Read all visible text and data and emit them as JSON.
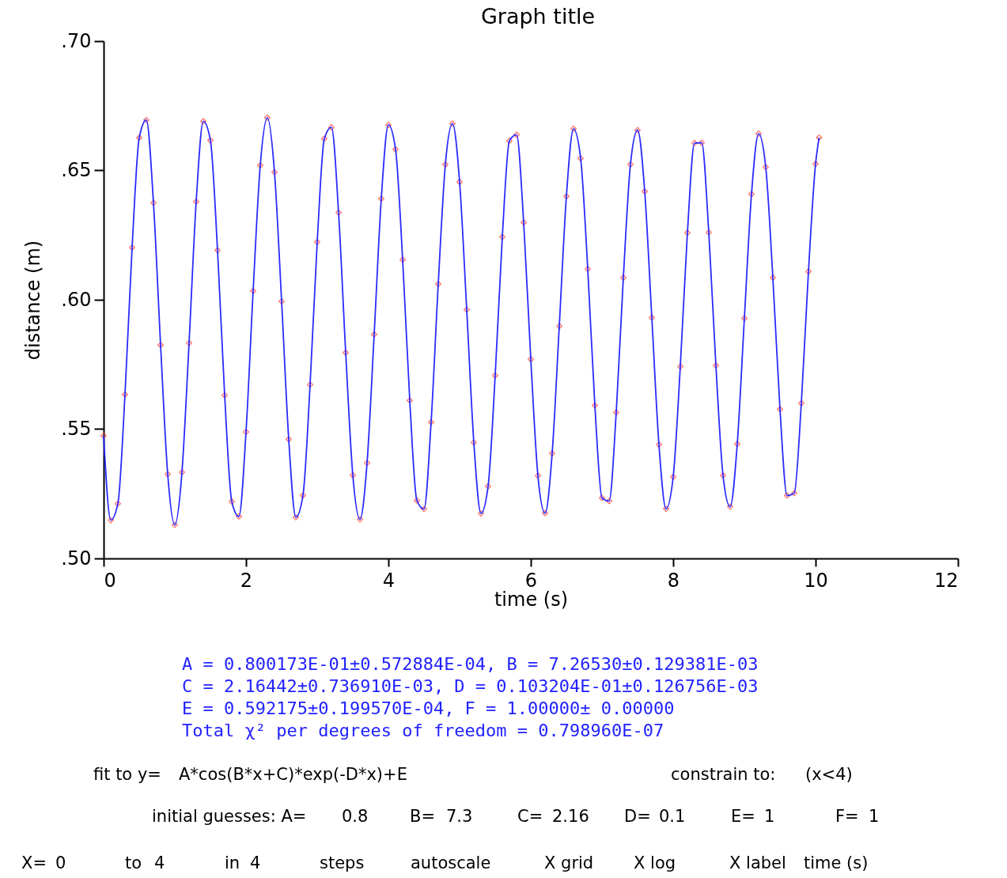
{
  "chart_data": {
    "type": "scatter",
    "title": "Graph title",
    "xlabel": "time (s)",
    "ylabel": "distance (m)",
    "x": [
      0,
      0.1,
      0.2,
      0.3,
      0.4,
      0.5,
      0.6,
      0.7,
      0.8,
      0.9,
      1,
      1.1,
      1.2,
      1.3,
      1.4,
      1.5,
      1.6,
      1.7,
      1.8,
      1.9,
      2,
      2.1,
      2.2,
      2.3,
      2.4,
      2.5,
      2.6,
      2.7,
      2.8,
      2.9,
      3,
      3.1,
      3.2,
      3.3,
      3.4,
      3.5,
      3.6,
      3.7,
      3.8,
      3.9,
      4,
      4.1,
      4.2,
      4.3,
      4.4,
      4.5,
      4.6,
      4.7,
      4.8,
      4.9,
      5,
      5.1,
      5.2,
      5.3,
      5.4,
      5.5,
      5.6,
      5.7,
      5.8,
      5.9,
      6,
      6.1,
      6.2,
      6.3,
      6.4,
      6.5,
      6.6,
      6.7,
      6.8,
      6.9,
      7,
      7.1,
      7.2,
      7.3,
      7.4,
      7.5,
      7.6,
      7.7,
      7.8,
      7.9,
      8,
      8.1,
      8.2,
      8.3,
      8.4,
      8.5,
      8.6,
      8.7,
      8.8,
      8.9,
      9,
      9.1,
      9.2,
      9.3,
      9.4,
      9.5,
      9.6,
      9.7,
      9.8,
      9.9,
      10,
      10.05
    ],
    "series": [
      {
        "marker": "diamond",
        "color": "#ff3b2f",
        "values": [
          0.5474,
          0.5148,
          0.5212,
          0.5634,
          0.6202,
          0.6626,
          0.6695,
          0.6375,
          0.5825,
          0.5326,
          0.513,
          0.5333,
          0.5833,
          0.6379,
          0.669,
          0.6616,
          0.6191,
          0.5631,
          0.522,
          0.5162,
          0.5489,
          0.6034,
          0.652,
          0.6704,
          0.6493,
          0.5994,
          0.546,
          0.5159,
          0.5244,
          0.5672,
          0.6223,
          0.6623,
          0.6667,
          0.6337,
          0.5796,
          0.5322,
          0.5151,
          0.5369,
          0.5866,
          0.6391,
          0.6676,
          0.6582,
          0.6155,
          0.5611,
          0.5224,
          0.5191,
          0.5527,
          0.6061,
          0.6523,
          0.6681,
          0.6456,
          0.5962,
          0.5448,
          0.5174,
          0.5279,
          0.5707,
          0.6243,
          0.6615,
          0.6638,
          0.6299,
          0.577,
          0.532,
          0.5175,
          0.5406,
          0.5898,
          0.64,
          0.6661,
          0.6547,
          0.6119,
          0.5592,
          0.5234,
          0.5222,
          0.5564,
          0.6086,
          0.6524,
          0.6656,
          0.6419,
          0.5931,
          0.544,
          0.5192,
          0.5315,
          0.5742,
          0.6259,
          0.6606,
          0.6607,
          0.6261,
          0.5746,
          0.5321,
          0.52,
          0.5443,
          0.5928,
          0.6408,
          0.6642,
          0.6513,
          0.6086,
          0.5577,
          0.5243,
          0.5252,
          0.56,
          0.6109,
          0.6525,
          0.6627
        ]
      },
      {
        "type": "line",
        "line_style": "solid",
        "color": "#2b2bff",
        "values": [
          0.5474,
          0.5148,
          0.5212,
          0.5634,
          0.6202,
          0.6626,
          0.6695,
          0.6375,
          0.5825,
          0.5326,
          0.513,
          0.5333,
          0.5833,
          0.6379,
          0.669,
          0.6616,
          0.6191,
          0.5631,
          0.522,
          0.5162,
          0.5489,
          0.6034,
          0.652,
          0.6704,
          0.6493,
          0.5994,
          0.546,
          0.5159,
          0.5244,
          0.5672,
          0.6223,
          0.6623,
          0.6667,
          0.6337,
          0.5796,
          0.5322,
          0.5151,
          0.5369,
          0.5866,
          0.6391,
          0.6676,
          0.6582,
          0.6155,
          0.5611,
          0.5224,
          0.5191,
          0.5527,
          0.6061,
          0.6523,
          0.6681,
          0.6456,
          0.5962,
          0.5448,
          0.5174,
          0.5279,
          0.5707,
          0.6243,
          0.6615,
          0.6638,
          0.6299,
          0.577,
          0.532,
          0.5175,
          0.5406,
          0.5898,
          0.64,
          0.6661,
          0.6547,
          0.6119,
          0.5592,
          0.5234,
          0.5222,
          0.5564,
          0.6086,
          0.6524,
          0.6656,
          0.6419,
          0.5931,
          0.544,
          0.5192,
          0.5315,
          0.5742,
          0.6259,
          0.6606,
          0.6607,
          0.6261,
          0.5746,
          0.5321,
          0.52,
          0.5443,
          0.5928,
          0.6408,
          0.6642,
          0.6513,
          0.6086,
          0.5577,
          0.5243,
          0.5252,
          0.56,
          0.6109,
          0.6525,
          0.6627
        ]
      }
    ],
    "xlim": [
      0,
      12
    ],
    "xticks": [
      0,
      2,
      4,
      6,
      8,
      10,
      12
    ],
    "ylim": [
      0.5,
      0.7
    ],
    "yticks": [
      {
        "value": 0.5,
        "label": ".50"
      },
      {
        "value": 0.55,
        "label": ".55"
      },
      {
        "value": 0.6,
        "label": ".60"
      },
      {
        "value": 0.65,
        "label": ".65"
      },
      {
        "value": 0.7,
        "label": ".70"
      }
    ],
    "grid": false,
    "legend": false,
    "annotations": [
      "A =   0.800173E-01±0.572884E-04, B =    7.26530±0.129381E-03",
      "C =    2.16442±0.736910E-03, D =  0.103204E-01±0.126756E-03",
      "E =   0.592175±0.199570E-04, F =    1.00000± 0.00000",
      "Total χ² per degrees of freedom =  0.798960E-07",
      "fit to y=",
      "A*cos(B*x+C)*exp(-D*x)+E",
      "constrain to:",
      "(x<4)",
      "initial guesses: A=",
      "0.8",
      "B=",
      "7.3",
      "C=",
      "2.16",
      "D=",
      "0.1",
      "E=",
      "1",
      "F=",
      "1",
      "X=",
      "0",
      "to",
      "4",
      "in",
      "4",
      "steps",
      "autoscale",
      "X grid",
      "X log",
      "X label",
      "time (s)"
    ]
  }
}
